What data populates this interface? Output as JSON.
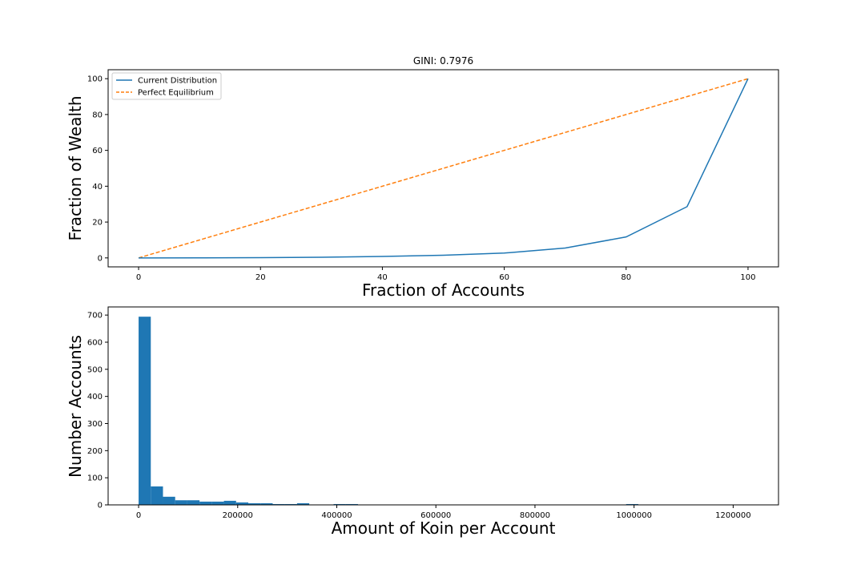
{
  "chart_data": [
    {
      "type": "line",
      "title": "GINI: 0.7976",
      "xlabel": "Fraction of Accounts",
      "ylabel": "Fraction of Wealth",
      "xlim": [
        -5,
        105
      ],
      "ylim": [
        -5,
        105
      ],
      "xticks": [
        0,
        20,
        40,
        60,
        80,
        100
      ],
      "yticks": [
        0,
        20,
        40,
        60,
        80,
        100
      ],
      "legend_placement": "top-left",
      "grid": false,
      "series": [
        {
          "name": "Current Distribution",
          "color": "#1f77b4",
          "style": "solid",
          "x": [
            0,
            10,
            20,
            30,
            40,
            50,
            60,
            70,
            80,
            90,
            100
          ],
          "y": [
            0,
            0.05,
            0.15,
            0.35,
            0.8,
            1.5,
            2.7,
            5.5,
            11.7,
            28.6,
            100
          ]
        },
        {
          "name": "Perfect Equilibrium",
          "color": "#ff7f0e",
          "style": "dashed",
          "x": [
            0,
            100
          ],
          "y": [
            0,
            100
          ]
        }
      ]
    },
    {
      "type": "bar",
      "title": "",
      "xlabel": "Amount of Koin per Account",
      "ylabel": "Number Accounts",
      "xlim": [
        -61500,
        1291500
      ],
      "ylim": [
        0,
        730
      ],
      "xticks": [
        0,
        200000,
        400000,
        600000,
        800000,
        1000000,
        1200000
      ],
      "yticks": [
        0,
        100,
        200,
        300,
        400,
        500,
        600,
        700
      ],
      "color": "#1f77b4",
      "grid": false,
      "bin_width": 24600,
      "bins": [
        {
          "x": 0,
          "value": 694
        },
        {
          "x": 24600,
          "value": 68
        },
        {
          "x": 49200,
          "value": 30
        },
        {
          "x": 73800,
          "value": 17
        },
        {
          "x": 98400,
          "value": 17
        },
        {
          "x": 123000,
          "value": 12
        },
        {
          "x": 147600,
          "value": 12
        },
        {
          "x": 172200,
          "value": 15
        },
        {
          "x": 196800,
          "value": 9
        },
        {
          "x": 221400,
          "value": 6
        },
        {
          "x": 246000,
          "value": 6
        },
        {
          "x": 270600,
          "value": 3
        },
        {
          "x": 295200,
          "value": 3
        },
        {
          "x": 319800,
          "value": 6
        },
        {
          "x": 344400,
          "value": 1
        },
        {
          "x": 369000,
          "value": 1
        },
        {
          "x": 393600,
          "value": 3
        },
        {
          "x": 418200,
          "value": 3
        },
        {
          "x": 442800,
          "value": 1
        },
        {
          "x": 492000,
          "value": 1
        },
        {
          "x": 984000,
          "value": 3
        }
      ]
    }
  ]
}
